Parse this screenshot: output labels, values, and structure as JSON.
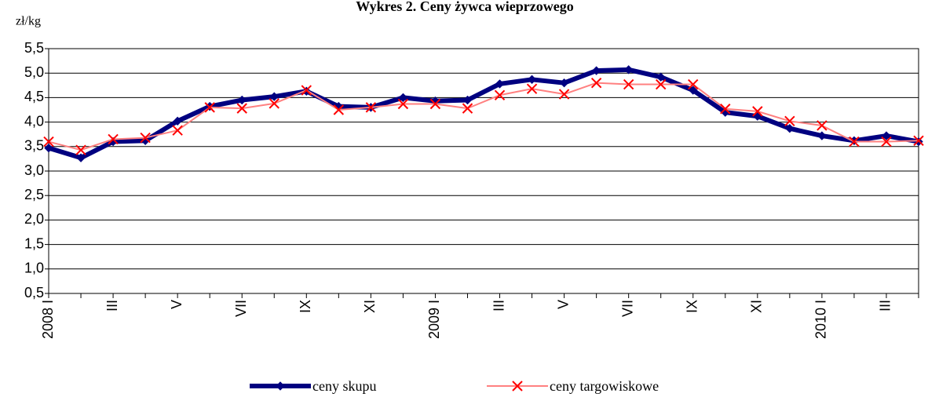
{
  "chart_data": {
    "type": "line",
    "title": "Wykres 2. Ceny żywca wieprzowego",
    "y_label": "zł/kg",
    "categories": [
      "2008 I",
      null,
      "III",
      null,
      "V",
      null,
      "VII",
      null,
      "IX",
      null,
      "XI",
      null,
      "2009 I",
      null,
      "III",
      null,
      "V",
      null,
      "VII",
      null,
      "IX",
      null,
      "XI",
      null,
      "2010 I",
      null,
      "III",
      null
    ],
    "series": [
      {
        "name": "ceny skupu",
        "color": "#000080",
        "marker": "diamond",
        "values": [
          3.47,
          3.27,
          3.6,
          3.62,
          4.02,
          4.32,
          4.45,
          4.52,
          4.63,
          4.32,
          4.3,
          4.5,
          4.43,
          4.45,
          4.78,
          4.87,
          4.8,
          5.05,
          5.07,
          4.92,
          4.65,
          4.2,
          4.12,
          3.87,
          3.72,
          3.62,
          3.72,
          3.6
        ]
      },
      {
        "name": "ceny targowiskowe",
        "color": "#ff8080",
        "marker": "x",
        "marker_color": "#ff0000",
        "values": [
          3.6,
          3.43,
          3.65,
          3.68,
          3.83,
          4.3,
          4.28,
          4.38,
          4.65,
          4.25,
          4.3,
          4.37,
          4.37,
          4.28,
          4.55,
          4.68,
          4.57,
          4.8,
          4.77,
          4.77,
          4.77,
          4.27,
          4.22,
          4.02,
          3.93,
          3.6,
          3.6,
          3.62
        ]
      }
    ],
    "ylim": [
      0.5,
      5.5
    ],
    "yticks": [
      {
        "value": 0.5,
        "label": "0,5"
      },
      {
        "value": 1,
        "label": "1,0"
      },
      {
        "value": 1.5,
        "label": "1,5"
      },
      {
        "value": 2,
        "label": "2,0"
      },
      {
        "value": 2.5,
        "label": "2,5"
      },
      {
        "value": 3,
        "label": "3,0"
      },
      {
        "value": 3.5,
        "label": "3,5"
      },
      {
        "value": 4,
        "label": "4,0"
      },
      {
        "value": 4.5,
        "label": "4,5"
      },
      {
        "value": 5,
        "label": "5,0"
      },
      {
        "value": 5.5,
        "label": "5,5"
      }
    ],
    "grid": true,
    "legend": "bottom"
  }
}
